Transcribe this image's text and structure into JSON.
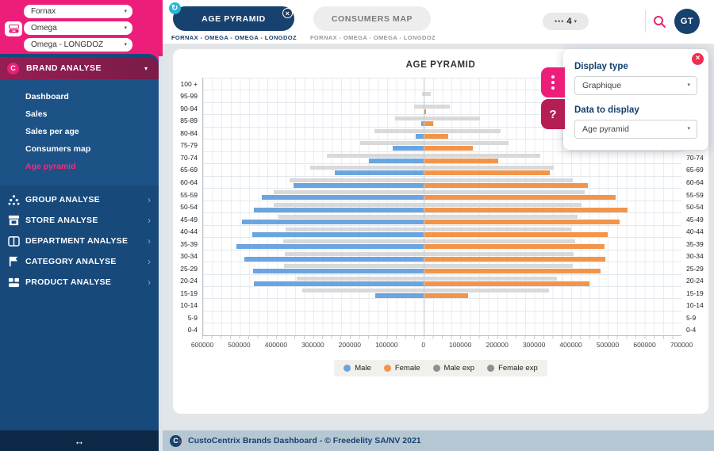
{
  "colors": {
    "accent_pink": "#ec1e79",
    "sidebar_navy": "#17497b",
    "tab_navy": "#17426f",
    "male_blue": "#6ba5e0",
    "female_orange": "#f2954a",
    "exp_gray_bar": "#d9d9d9",
    "exp_gray_dot": "#8f8f8f",
    "panel_close_red": "#ee2d4f"
  },
  "icons": {
    "refresh": "↻",
    "close": "×",
    "caret_down": "▾",
    "chevron_right": "›",
    "collapse": "↔",
    "ellipsis": "•••",
    "help": "?",
    "brand_initial": "C",
    "logo_initial": "C"
  },
  "sidebar": {
    "filters": [
      {
        "value": "Fornax"
      },
      {
        "value": "Omega"
      },
      {
        "value": "Omega - LONGDOZ"
      }
    ],
    "brand_section": {
      "label": "BRAND ANALYSE",
      "items": [
        {
          "label": "Dashboard",
          "active": false
        },
        {
          "label": "Sales",
          "active": false
        },
        {
          "label": "Sales per age",
          "active": false
        },
        {
          "label": "Consumers map",
          "active": false
        },
        {
          "label": "Age pyramid",
          "active": true
        }
      ]
    },
    "menu": [
      {
        "label": "GROUP ANALYSE",
        "icon": "group-icon"
      },
      {
        "label": "STORE ANALYSE",
        "icon": "store-icon"
      },
      {
        "label": "DEPARTMENT ANALYSE",
        "icon": "department-icon"
      },
      {
        "label": "CATEGORY ANALYSE",
        "icon": "category-icon"
      },
      {
        "label": "PRODUCT ANALYSE",
        "icon": "product-icon"
      }
    ]
  },
  "topbar": {
    "tabs": [
      {
        "label": "AGE PYRAMID",
        "subtitle": "FORNAX - OMEGA - OMEGA - LONGDOZ",
        "active": true
      },
      {
        "label": "CONSUMERS MAP",
        "subtitle": "FORNAX - OMEGA - OMEGA - LONGDOZ",
        "active": false
      }
    ],
    "counter": "4",
    "avatar_initials": "GT"
  },
  "panel": {
    "display_type_label": "Display type",
    "display_type_value": "Graphique",
    "data_label": "Data to display",
    "data_value": "Age pyramid"
  },
  "footer": {
    "text": "CustoCentrix Brands Dashboard - © Freedelity SA/NV 2021"
  },
  "chart_data": {
    "type": "bar",
    "title": "AGE PYRAMID",
    "orientation": "horizontal-pyramid",
    "grid": true,
    "legend_position": "bottom",
    "xlim": [
      -600000,
      700000
    ],
    "x_tick_step": 100000,
    "x_tick_labels": [
      "600000",
      "500000",
      "400000",
      "300000",
      "200000",
      "100000",
      "0",
      "100000",
      "200000",
      "300000",
      "400000",
      "500000",
      "600000",
      "700000"
    ],
    "categories": [
      "100 +",
      "95-99",
      "90-94",
      "85-89",
      "80-84",
      "75-79",
      "70-74",
      "65-69",
      "60-64",
      "55-59",
      "50-54",
      "45-49",
      "40-44",
      "35-39",
      "30-34",
      "25-29",
      "20-24",
      "15-19",
      "10-14",
      "5-9",
      "0-4"
    ],
    "series": [
      {
        "name": "Male",
        "side": "left",
        "lane": "act",
        "color": "#6ba5e0",
        "dot_color": "#6ba5e0",
        "values": [
          0,
          0,
          0,
          7000,
          23000,
          84000,
          149000,
          242000,
          354000,
          440000,
          462000,
          494000,
          466000,
          510000,
          488000,
          464000,
          461000,
          132000,
          0,
          0,
          0
        ]
      },
      {
        "name": "Female",
        "side": "right",
        "lane": "act",
        "color": "#f2954a",
        "dot_color": "#f2954a",
        "values": [
          0,
          0,
          6000,
          25000,
          67000,
          134000,
          201000,
          342000,
          446000,
          522000,
          553000,
          531000,
          500000,
          491000,
          493000,
          481000,
          451000,
          121000,
          0,
          0,
          0
        ]
      },
      {
        "name": "Male exp",
        "side": "left",
        "lane": "exp",
        "color": "#d9d9d9",
        "dot_color": "#8f8f8f",
        "values": [
          0,
          5000,
          27000,
          79000,
          135000,
          173000,
          263000,
          308000,
          364000,
          408000,
          408000,
          396000,
          376000,
          382000,
          378000,
          380000,
          346000,
          331000,
          0,
          0,
          0
        ]
      },
      {
        "name": "Female exp",
        "side": "right",
        "lane": "exp",
        "color": "#d9d9d9",
        "dot_color": "#8f8f8f",
        "values": [
          0,
          18000,
          71000,
          152000,
          208000,
          229000,
          317000,
          354000,
          404000,
          437000,
          428000,
          417000,
          401000,
          411000,
          407000,
          404000,
          362000,
          339000,
          0,
          0,
          0
        ]
      }
    ]
  }
}
